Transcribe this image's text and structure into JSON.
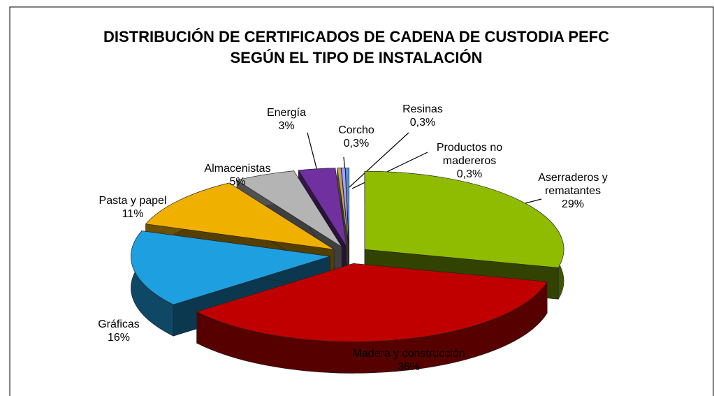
{
  "chart_data": {
    "type": "pie3d",
    "title": "DISTRIBUCIÓN DE CERTIFICADOS DE CADENA DE CUSTODIA PEFC SEGÚN EL TIPO DE INSTALACIÓN",
    "categories": [
      "Aserraderos y rematantes",
      "Madera y construcción",
      "Gráficas",
      "Pasta y papel",
      "Almacenistas",
      "Energía",
      "Corcho",
      "Resinas",
      "Productos no madereros"
    ],
    "values": [
      29,
      36,
      16,
      11,
      5,
      3,
      0.3,
      0.3,
      0.3
    ],
    "value_labels": [
      "29%",
      "36%",
      "16%",
      "11%",
      "5%",
      "3%",
      "0,3%",
      "0,3%",
      "0,3%"
    ],
    "colors": [
      "#8fbc00",
      "#c00000",
      "#1ea0e0",
      "#f0b000",
      "#b4b4b4",
      "#7030a0",
      "#c0a060",
      "#a0a0ff",
      "#6090d0"
    ]
  }
}
